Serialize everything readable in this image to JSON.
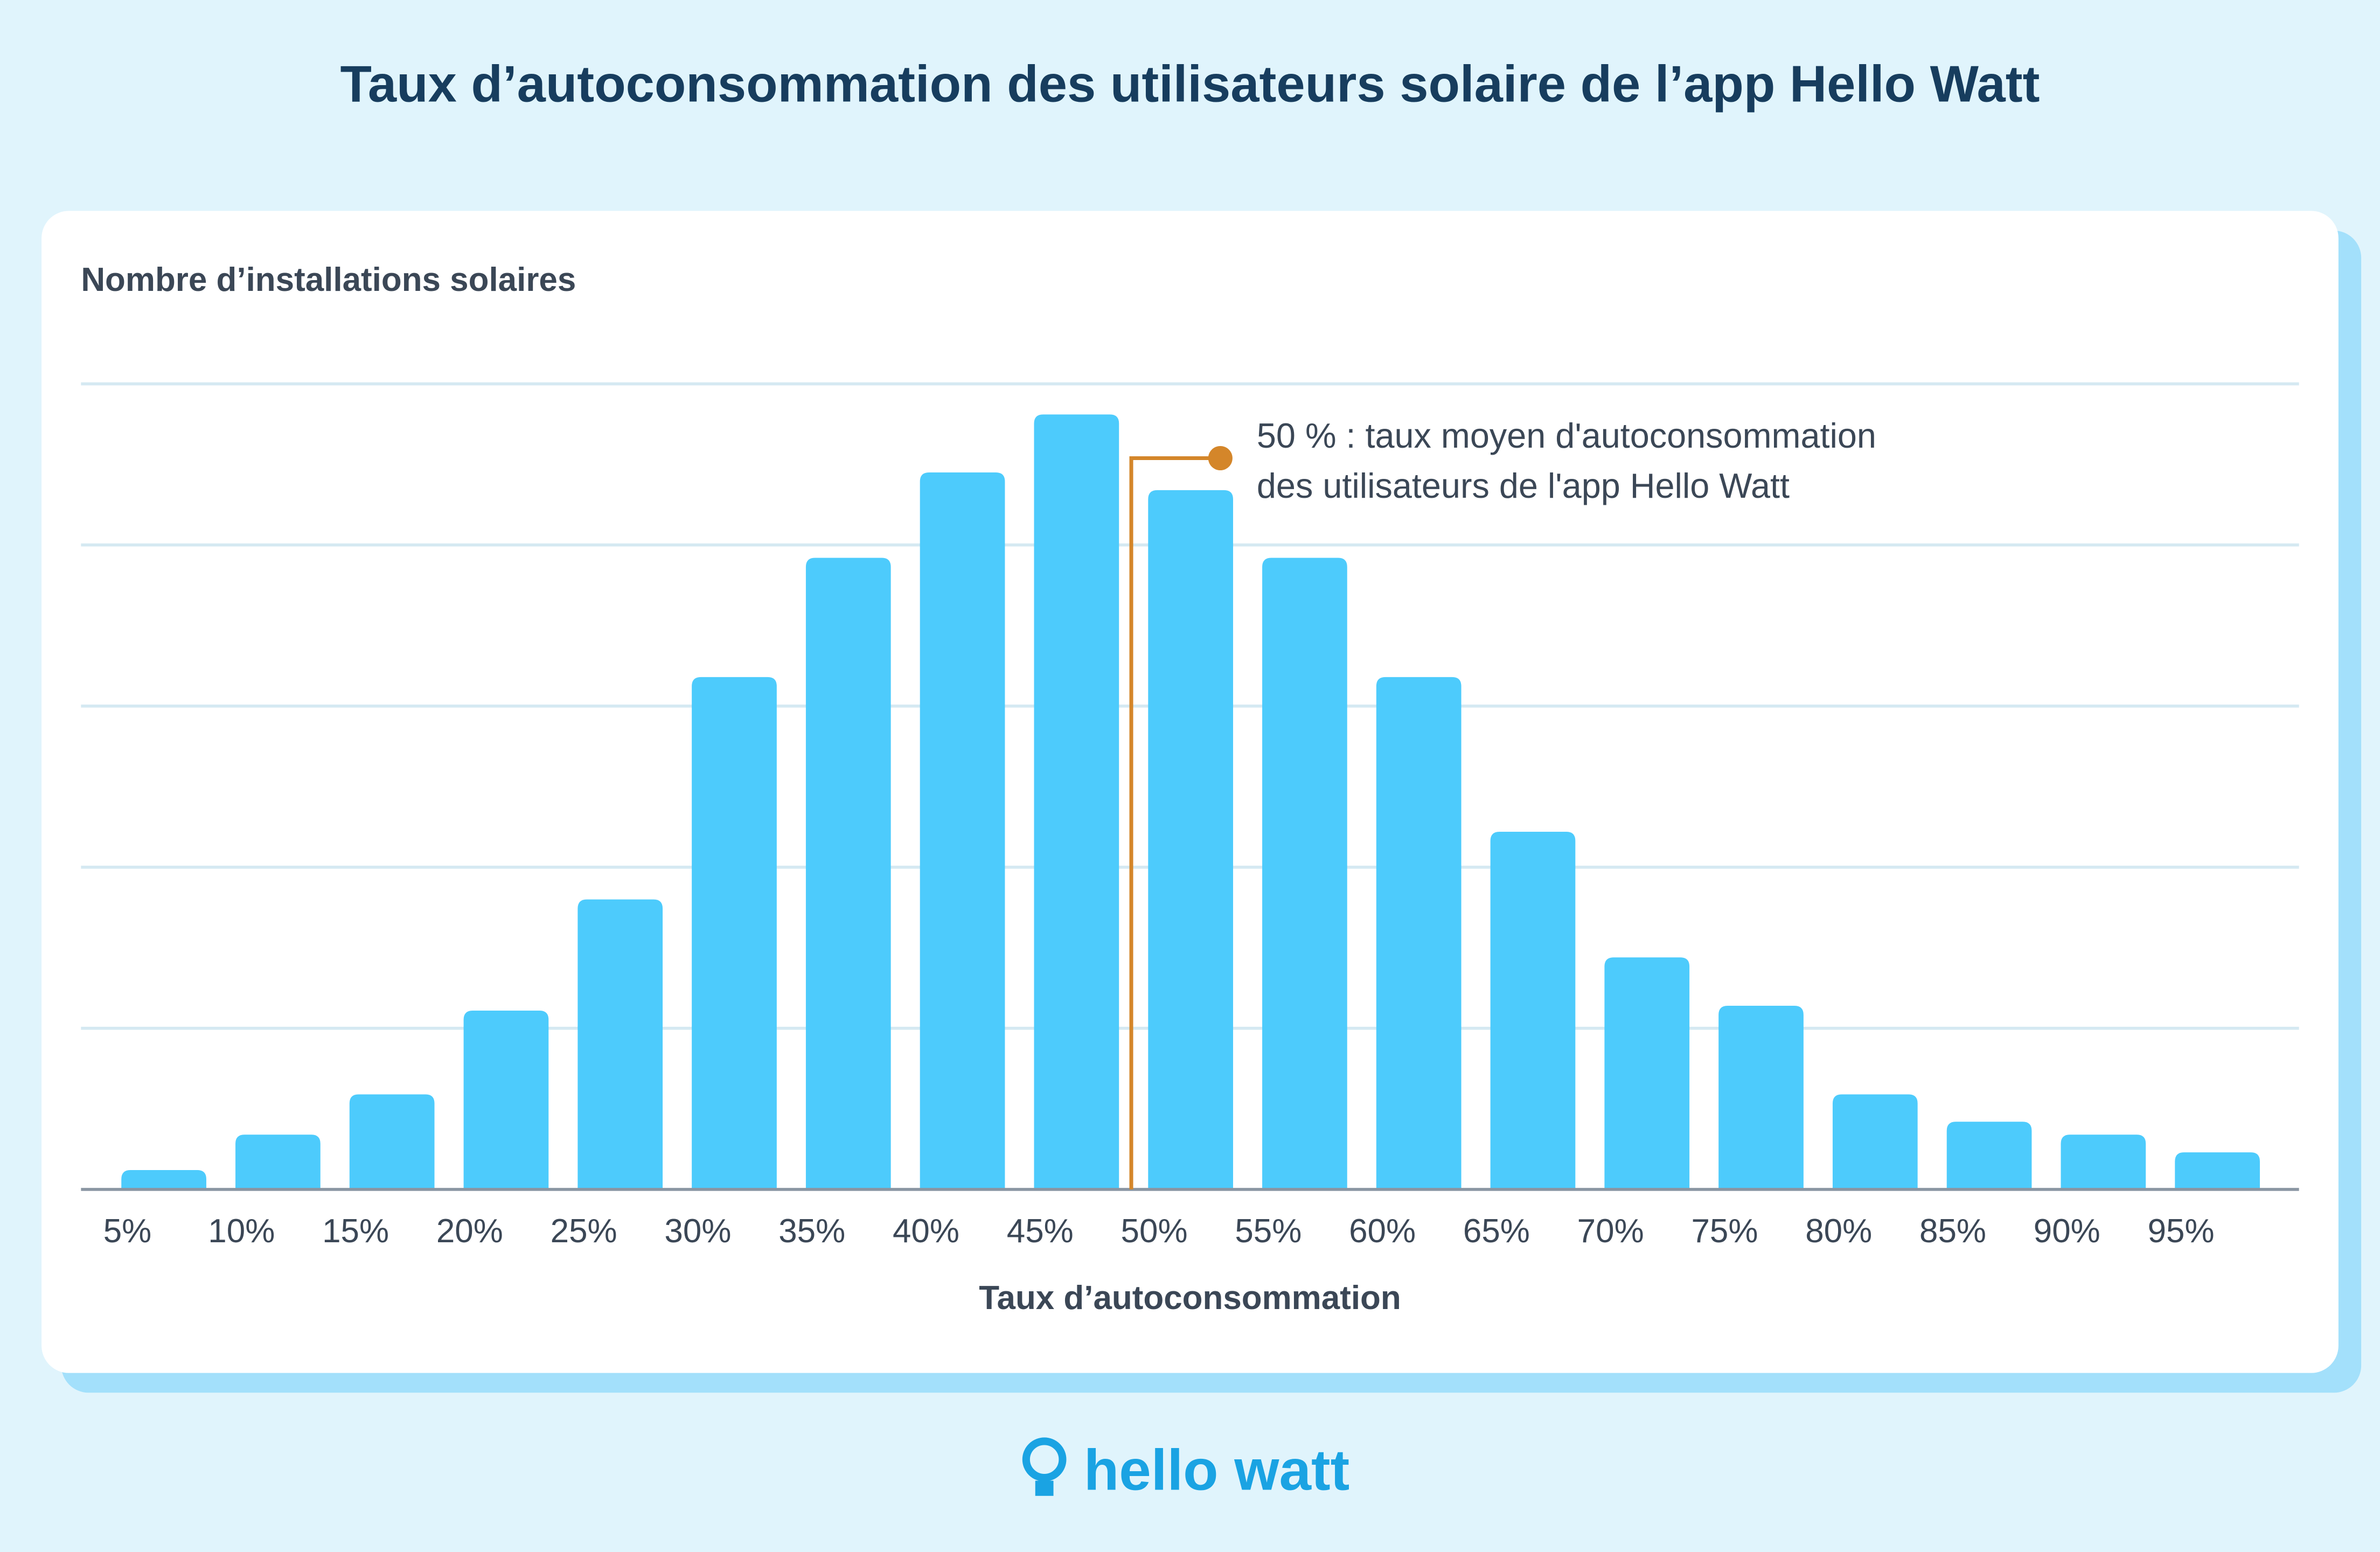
{
  "chart_data": {
    "type": "bar",
    "title": "Taux d’autoconsommation des utilisateurs solaire de l’app Hello Watt",
    "y_label": "Nombre d’installations solaires",
    "x_label": "Taux d’autoconsommation",
    "categories": [
      "5%",
      "10%",
      "15%",
      "20%",
      "25%",
      "30%",
      "35%",
      "40%",
      "45%",
      "50%",
      "55%",
      "60%",
      "65%",
      "70%",
      "75%",
      "80%",
      "85%",
      "90%",
      "95%"
    ],
    "values": [
      0.12,
      0.34,
      0.59,
      1.11,
      1.8,
      3.18,
      3.92,
      4.45,
      4.81,
      4.34,
      3.92,
      3.18,
      2.22,
      1.44,
      1.14,
      0.59,
      0.42,
      0.34,
      0.23
    ],
    "color": "#4dcbfc",
    "ylim": [
      0,
      5
    ],
    "yticks": [
      1,
      2,
      3,
      4,
      5
    ],
    "grid": true,
    "annotation": [
      "50 % : taux moyen d'autoconsommation",
      "des utilisateurs de l'app Hello Watt"
    ],
    "annotation_color": "#d4862a",
    "brand": "hello watt"
  }
}
